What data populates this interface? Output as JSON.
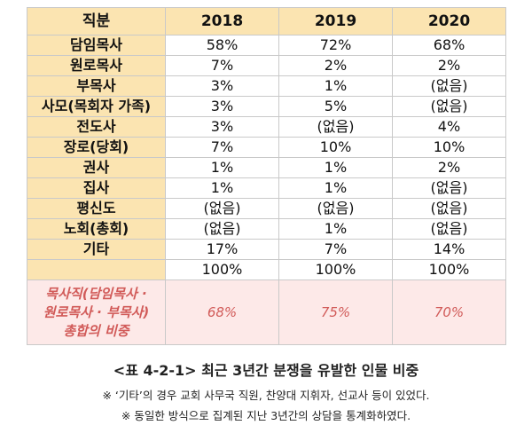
{
  "table": {
    "header": [
      "직분",
      "2018",
      "2019",
      "2020"
    ],
    "rows": [
      {
        "label": "담임목사",
        "values": [
          "58%",
          "72%",
          "68%"
        ]
      },
      {
        "label": "원로목사",
        "values": [
          "7%",
          "2%",
          "2%"
        ]
      },
      {
        "label": "부목사",
        "values": [
          "3%",
          "1%",
          "(없음)"
        ]
      },
      {
        "label": "사모(목회자 가족)",
        "values": [
          "3%",
          "5%",
          "(없음)"
        ]
      },
      {
        "label": "전도사",
        "values": [
          "3%",
          "(없음)",
          "4%"
        ]
      },
      {
        "label": "장로(당회)",
        "values": [
          "7%",
          "10%",
          "10%"
        ]
      },
      {
        "label": "권사",
        "values": [
          "1%",
          "1%",
          "2%"
        ]
      },
      {
        "label": "집사",
        "values": [
          "1%",
          "1%",
          "(없음)"
        ]
      },
      {
        "label": "평신도",
        "values": [
          "(없음)",
          "(없음)",
          "(없음)"
        ]
      },
      {
        "label": "노회(총회)",
        "values": [
          "(없음)",
          "1%",
          "(없음)"
        ]
      },
      {
        "label": "기타",
        "values": [
          "17%",
          "7%",
          "14%"
        ]
      }
    ],
    "total": {
      "label": "",
      "values": [
        "100%",
        "100%",
        "100%"
      ]
    },
    "summary": {
      "label_lines": [
        "목사직(담임목사 ·",
        "원로목사  · 부목사)",
        "총합의 비중"
      ],
      "values": [
        "68%",
        "75%",
        "70%"
      ]
    }
  },
  "caption": "<표 4-2-1> 최근 3년간 분쟁을 유발한 인물 비중",
  "notes": [
    "※ ‘기타’의 경우 교회 사무국 직원, 찬양대 지휘자, 선교사 등이 있었다.",
    "※ 동일한 방식으로 집계된 지난 3년간의 상담을 통계화하였다."
  ],
  "colors": {
    "header_bg": "#fbe4b1",
    "summary_bg": "#fde9e8",
    "summary_text": "#d15a58"
  }
}
